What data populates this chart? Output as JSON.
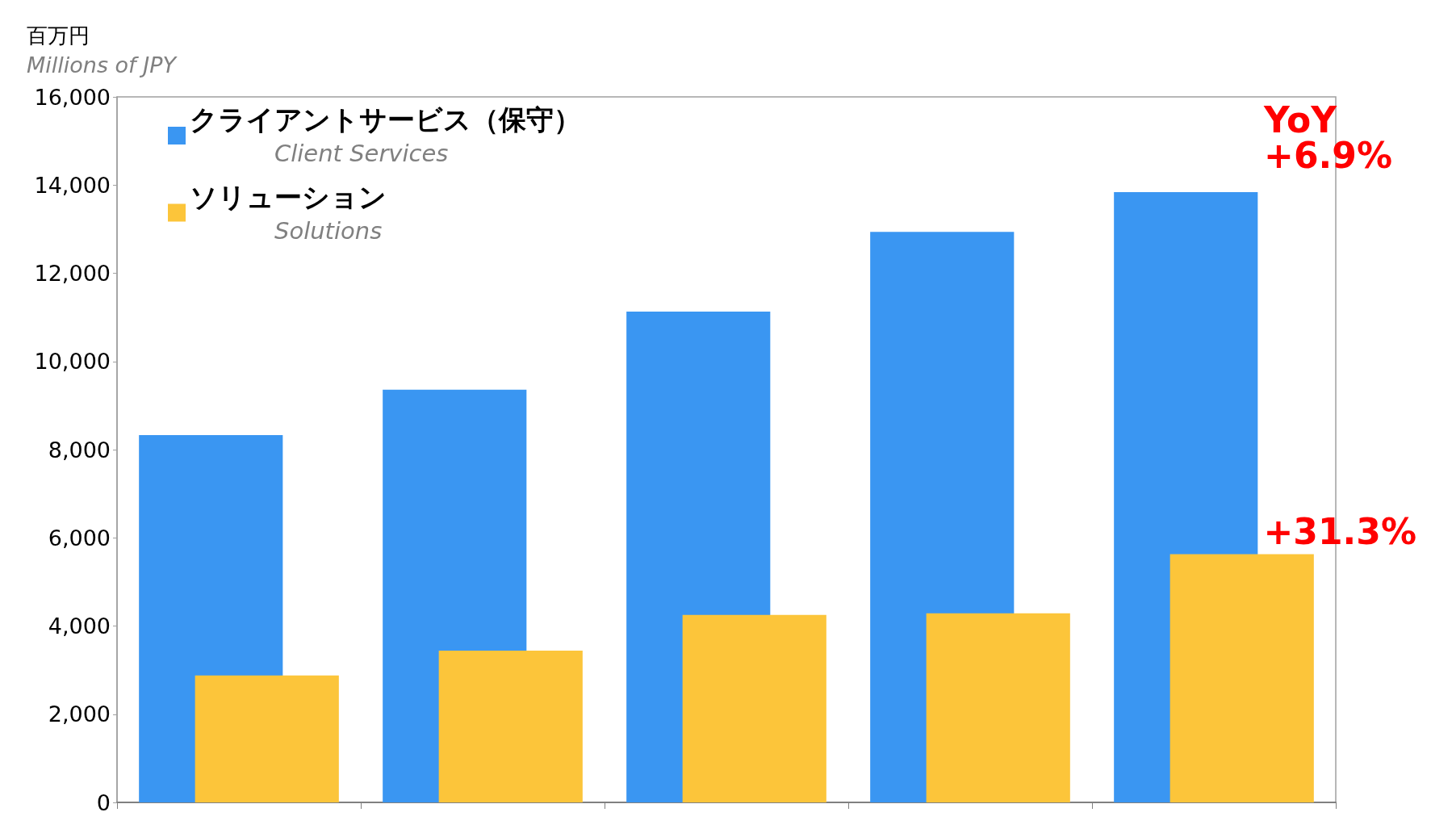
{
  "chart_data": {
    "type": "bar",
    "ylabel": "百万円\nMillions of JPY",
    "categories": [
      null,
      null,
      null,
      null,
      null
    ],
    "series": [
      {
        "name": "クライアントサービス（保守）\nClient Services",
        "color": "#3a96f2",
        "values": [
          8330,
          9360,
          11130,
          12940,
          13840
        ]
      },
      {
        "name": "ソリューション\nSolutions",
        "color": "#fcc53a",
        "values": [
          2880,
          3440,
          4250,
          4290,
          5630
        ]
      }
    ],
    "ylim": [
      0,
      16000
    ],
    "yticks": [
      0,
      {
        "value": 2000,
        "label": "2,000"
      },
      {
        "value": 4000,
        "label": "4,000"
      },
      {
        "value": 6000,
        "label": "6,000"
      },
      {
        "value": 8000,
        "label": "8,000"
      },
      {
        "value": 10000,
        "label": "10,000"
      },
      {
        "value": 12000,
        "label": "12,000"
      },
      {
        "value": 14000,
        "label": "14,000"
      },
      {
        "value": 16000,
        "label": "16,000"
      }
    ],
    "grid": false,
    "legend": "top left",
    "annotations": [
      "YoY\n+6.9%",
      "+31.3%"
    ]
  }
}
